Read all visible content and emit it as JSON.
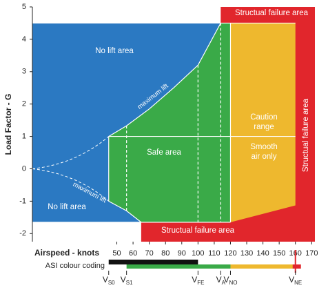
{
  "chart_data": {
    "type": "area",
    "xlabel": "Airspeed - knots",
    "ylabel": "Load Factor - G",
    "xlim": [
      -2,
      172
    ],
    "ylim": [
      -2.25,
      5
    ],
    "xticks": [
      50,
      60,
      70,
      80,
      90,
      100,
      110,
      120,
      130,
      140,
      150,
      160,
      170
    ],
    "yticks": [
      -2,
      -1,
      0,
      1,
      2,
      3,
      4,
      5
    ],
    "max_load": 4.5,
    "min_load": -1.65,
    "caution_floor": -1.13,
    "upper_curve": {
      "name": "maximum lift",
      "x": [
        45,
        56,
        70,
        85,
        100,
        114
      ],
      "y": [
        1,
        1.33,
        1.85,
        2.5,
        3.2,
        4.5
      ]
    },
    "lower_curve": {
      "name": "maximum lift",
      "x": [
        45,
        56,
        65
      ],
      "y": [
        -1,
        -1.3,
        -1.65
      ]
    },
    "speeds": [
      {
        "name": "V",
        "sub": "S0",
        "value": 45
      },
      {
        "name": "V",
        "sub": "S1",
        "value": 56
      },
      {
        "name": "V",
        "sub": "FE",
        "value": 100
      },
      {
        "name": "V",
        "sub": "A",
        "value": 114
      },
      {
        "name": "V",
        "sub": "NO",
        "value": 120
      },
      {
        "name": "V",
        "sub": "NE",
        "value": 160
      }
    ],
    "labels": {
      "no_lift_upper": "No lift area",
      "no_lift_lower": "No lift area",
      "safe": "Safe area",
      "caution": [
        "Caution",
        "range"
      ],
      "smooth": [
        "Smooth",
        "air only"
      ],
      "failure_top": "Structual failure area",
      "failure_right": "Structual failure area",
      "failure_bottom": "Structual failure area"
    },
    "asi_label": "ASI colour coding",
    "colors": {
      "blue": "#2b79c2",
      "green": "#3aaa48",
      "yellow": "#eeb82e",
      "red": "#e1262c",
      "black": "#111111"
    }
  }
}
